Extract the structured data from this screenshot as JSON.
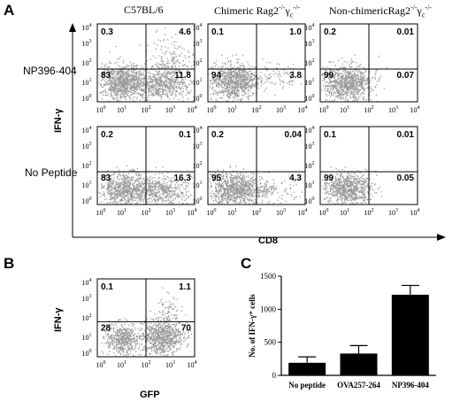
{
  "panel_a": {
    "letter": "A",
    "column_titles": [
      {
        "text": "C57BL/6"
      },
      {
        "text": "Chimeric Rag2",
        "sup": "-/-",
        "gamma": "γ",
        "sub": "c",
        "sup2": "-/-"
      },
      {
        "text": "Non-chimericRag2",
        "sup": "-/-",
        "gamma": "γ",
        "sub": "c",
        "sup2": "-/-"
      }
    ],
    "row_labels": [
      "NP396-404",
      "No Peptide"
    ],
    "y_axis_label": "IFN-γ",
    "x_axis_label": "CD8",
    "quadrants": [
      [
        {
          "ul": "0.3",
          "ur": "4.6",
          "ll": "83",
          "lr": "11.8"
        },
        {
          "ul": "0.1",
          "ur": "1.0",
          "ll": "94",
          "lr": "3.8"
        },
        {
          "ul": "0.2",
          "ur": "0.01",
          "ll": "99",
          "lr": "0.07"
        }
      ],
      [
        {
          "ul": "0.2",
          "ur": "0.1",
          "ll": "83",
          "lr": "16.3"
        },
        {
          "ul": "0.2",
          "ur": "0.04",
          "ll": "95",
          "lr": "4.3"
        },
        {
          "ul": "0.1",
          "ur": "0.01",
          "ll": "99",
          "lr": "0.05"
        }
      ]
    ],
    "tick_labels": [
      "10",
      "10",
      "10",
      "10",
      "10"
    ],
    "tick_exponents": [
      "0",
      "1",
      "2",
      "3",
      "4"
    ]
  },
  "panel_b": {
    "letter": "B",
    "y_axis_label": "IFN-γ",
    "x_axis_label": "GFP",
    "quadrants": {
      "ul": "0.1",
      "ur": "1.1",
      "ll": "28",
      "lr": "70"
    }
  },
  "panel_c": {
    "letter": "C",
    "chart_data": {
      "type": "bar",
      "categories": [
        "No peptide",
        "OVA257-264",
        "NP396-404"
      ],
      "values": [
        190,
        330,
        1220
      ],
      "errors": [
        90,
        120,
        140
      ],
      "ylabel": "No. of IFN-γ⁺ cells",
      "ylim": [
        0,
        1500
      ],
      "yticks": [
        "0",
        "500",
        "1000",
        "1500"
      ]
    }
  },
  "colors": {
    "dots": "#9a9a9a",
    "bar": "#000000",
    "axis": "#000000"
  }
}
